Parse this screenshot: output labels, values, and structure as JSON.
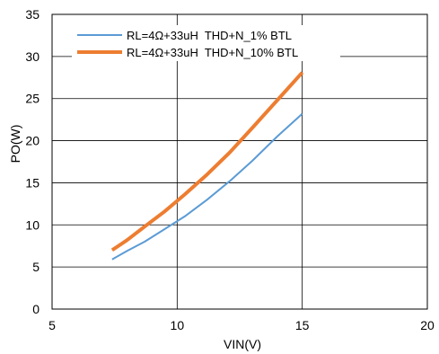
{
  "chart_data": {
    "type": "line",
    "xlabel": "VIN(V)",
    "ylabel": "PO(W)",
    "xlim": [
      5,
      20
    ],
    "ylim": [
      0,
      35
    ],
    "xticks": [
      "5",
      "10",
      "15",
      "20"
    ],
    "yticks": [
      "0",
      "5",
      "10",
      "15",
      "20",
      "25",
      "30",
      "35"
    ],
    "grid": true,
    "legend_position": "top-left",
    "series": [
      {
        "name": "RL=4Ω+33uH  THD+N_1% BTL",
        "color": "#5b9bd5",
        "x": [
          7.4,
          8.0,
          8.7,
          9.5,
          10.3,
          11.2,
          12.1,
          13.0,
          14.0,
          15.0
        ],
        "y": [
          5.9,
          6.9,
          8.0,
          9.5,
          11.0,
          13.0,
          15.2,
          17.6,
          20.5,
          23.2
        ]
      },
      {
        "name": "RL=4Ω+33uH  THD+N_10% BTL",
        "color": "#ed7d31",
        "x": [
          7.4,
          8.0,
          8.7,
          9.5,
          10.3,
          11.2,
          12.1,
          13.0,
          14.0,
          15.0
        ],
        "y": [
          7.0,
          8.2,
          9.8,
          11.6,
          13.6,
          16.0,
          18.6,
          21.5,
          24.8,
          28.1
        ]
      }
    ]
  }
}
